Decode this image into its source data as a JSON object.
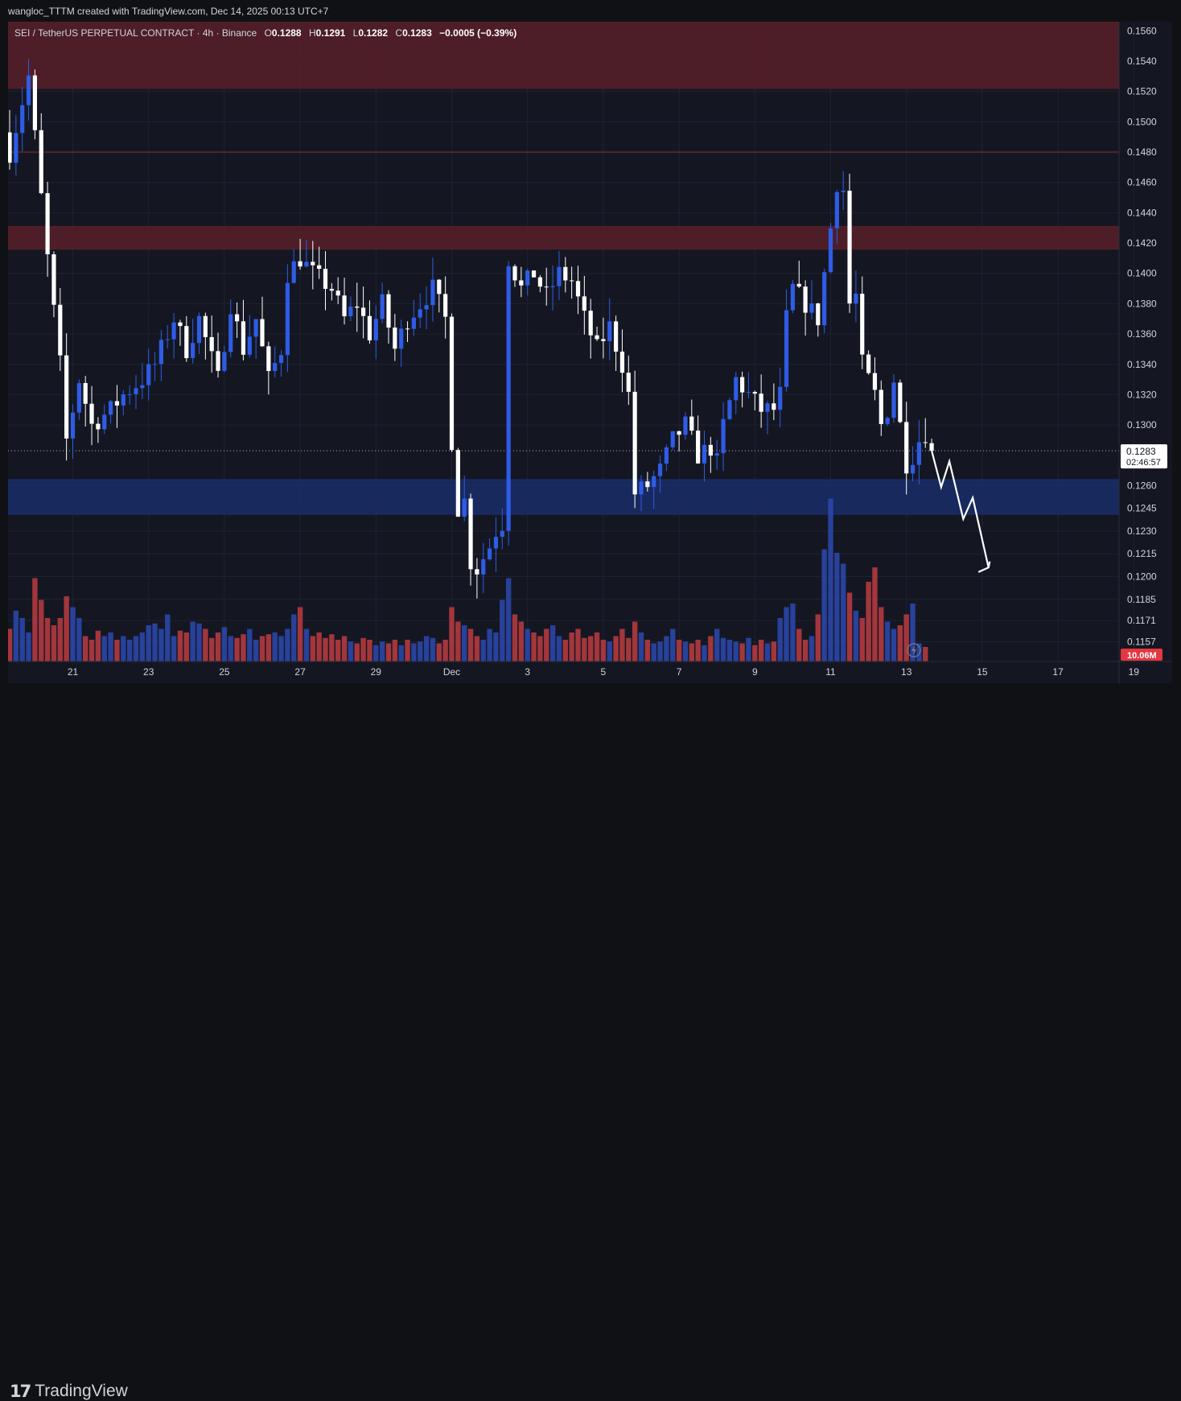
{
  "header": {
    "creator_text": "wangloc_TTTM created with TradingView.com, Dec 14, 2025 00:13 UTC+7"
  },
  "legend": {
    "symbol": "SEI / TetherUS PERPETUAL CONTRACT · 4h · Binance",
    "open_label": "O",
    "open": "0.1288",
    "high_label": "H",
    "high": "0.1291",
    "low_label": "L",
    "low": "0.1282",
    "close_label": "C",
    "close": "0.1283",
    "change": "−0.0005 (−0.39%)"
  },
  "price_badge": {
    "price": "0.1283",
    "countdown": "02:46:57"
  },
  "volume_badge": "10.06M",
  "brand": {
    "name": "TradingView",
    "logo_text": "17"
  },
  "colors": {
    "background": "#141722",
    "up_candle": "#2e5ce6",
    "down_candle": "#ffffff",
    "volume_up": "#2a46a8",
    "volume_down": "#b33a3f",
    "resistance_zone": "#5a1f2a",
    "support_zone": "#1a2d6b",
    "projection_arrow": "#ffffff"
  },
  "chart_data": {
    "type": "candlestick",
    "symbol": "SEI / TetherUS PERPETUAL CONTRACT",
    "timeframe": "4h",
    "exchange": "Binance",
    "ylim": [
      0.1144,
      0.1566
    ],
    "price_ticks": [
      "0.1560",
      "0.1540",
      "0.1520",
      "0.1500",
      "0.1480",
      "0.1460",
      "0.1440",
      "0.1420",
      "0.1400",
      "0.1380",
      "0.1360",
      "0.1340",
      "0.1320",
      "0.1300",
      "0.1260",
      "0.1245",
      "0.1230",
      "0.1215",
      "0.1200",
      "0.1185",
      "0.1171",
      "0.1157"
    ],
    "price_tick_values": [
      0.156,
      0.154,
      0.152,
      0.15,
      0.148,
      0.146,
      0.144,
      0.142,
      0.14,
      0.138,
      0.136,
      0.134,
      0.132,
      0.13,
      0.126,
      0.1245,
      0.123,
      0.1215,
      0.12,
      0.1185,
      0.1171,
      0.1157
    ],
    "x_ticks": [
      {
        "label": "21",
        "bar": 10
      },
      {
        "label": "23",
        "bar": 22
      },
      {
        "label": "25",
        "bar": 34
      },
      {
        "label": "27",
        "bar": 46
      },
      {
        "label": "29",
        "bar": 58
      },
      {
        "label": "Dec",
        "bar": 70
      },
      {
        "label": "3",
        "bar": 82
      },
      {
        "label": "5",
        "bar": 94
      },
      {
        "label": "7",
        "bar": 106
      },
      {
        "label": "9",
        "bar": 118
      },
      {
        "label": "11",
        "bar": 130
      },
      {
        "label": "13",
        "bar": 142
      },
      {
        "label": "15",
        "bar": 154
      },
      {
        "label": "17",
        "bar": 166
      },
      {
        "label": "19",
        "bar": 178
      }
    ],
    "current_price": 0.1283,
    "zones": [
      {
        "name": "resistance-top",
        "from": 0.1522,
        "to": 0.1566,
        "color": "#5a1f2a"
      },
      {
        "name": "resistance-mid",
        "from": 0.1416,
        "to": 0.1431,
        "color": "#5a1f2a"
      },
      {
        "name": "support",
        "from": 0.1241,
        "to": 0.1264,
        "color": "#1a2d6b"
      }
    ],
    "lines": [
      {
        "name": "resistance-line",
        "price": 0.148,
        "color": "#8a2f3a"
      }
    ],
    "waypoints": [
      [
        0,
        0.148
      ],
      [
        3,
        0.153
      ],
      [
        4,
        0.149
      ],
      [
        6,
        0.141
      ],
      [
        8,
        0.134
      ],
      [
        9,
        0.129
      ],
      [
        11,
        0.133
      ],
      [
        13,
        0.13
      ],
      [
        16,
        0.131
      ],
      [
        18,
        0.132
      ],
      [
        21,
        0.133
      ],
      [
        23,
        0.134
      ],
      [
        26,
        0.137
      ],
      [
        28,
        0.135
      ],
      [
        30,
        0.137
      ],
      [
        33,
        0.133
      ],
      [
        35,
        0.138
      ],
      [
        37,
        0.135
      ],
      [
        39,
        0.137
      ],
      [
        41,
        0.133
      ],
      [
        43,
        0.135
      ],
      [
        44,
        0.14
      ],
      [
        46,
        0.141
      ],
      [
        48,
        0.14
      ],
      [
        51,
        0.139
      ],
      [
        53,
        0.137
      ],
      [
        55,
        0.138
      ],
      [
        57,
        0.136
      ],
      [
        59,
        0.138
      ],
      [
        61,
        0.135
      ],
      [
        63,
        0.137
      ],
      [
        65,
        0.138
      ],
      [
        67,
        0.139
      ],
      [
        68,
        0.138
      ],
      [
        69,
        0.137
      ],
      [
        70,
        0.129
      ],
      [
        71,
        0.1245
      ],
      [
        72,
        0.125
      ],
      [
        73,
        0.121
      ],
      [
        74,
        0.1205
      ],
      [
        76,
        0.122
      ],
      [
        77,
        0.123
      ],
      [
        78,
        0.1235
      ],
      [
        79,
        0.141
      ],
      [
        81,
        0.139
      ],
      [
        83,
        0.14
      ],
      [
        85,
        0.1385
      ],
      [
        87,
        0.14
      ],
      [
        89,
        0.1395
      ],
      [
        91,
        0.137
      ],
      [
        93,
        0.135
      ],
      [
        95,
        0.1365
      ],
      [
        97,
        0.134
      ],
      [
        98,
        0.132
      ],
      [
        99,
        0.1255
      ],
      [
        101,
        0.126
      ],
      [
        103,
        0.127
      ],
      [
        105,
        0.129
      ],
      [
        107,
        0.13
      ],
      [
        109,
        0.128
      ],
      [
        111,
        0.1285
      ],
      [
        112,
        0.1275
      ],
      [
        113,
        0.13
      ],
      [
        115,
        0.133
      ],
      [
        117,
        0.132
      ],
      [
        119,
        0.131
      ],
      [
        121,
        0.131
      ],
      [
        122,
        0.132
      ],
      [
        123,
        0.137
      ],
      [
        124,
        0.139
      ],
      [
        126,
        0.138
      ],
      [
        128,
        0.137
      ],
      [
        129,
        0.14
      ],
      [
        130,
        0.143
      ],
      [
        131,
        0.146
      ],
      [
        132,
        0.1455
      ],
      [
        133,
        0.138
      ],
      [
        134,
        0.1385
      ],
      [
        135,
        0.134
      ],
      [
        136,
        0.133
      ],
      [
        137,
        0.132
      ],
      [
        138,
        0.13
      ],
      [
        139,
        0.131
      ],
      [
        140,
        0.133
      ],
      [
        141,
        0.13
      ],
      [
        142,
        0.1275
      ],
      [
        143,
        0.128
      ],
      [
        144,
        0.129
      ],
      [
        145,
        0.1295
      ],
      [
        146,
        0.1283
      ]
    ],
    "volume_max": 1.0,
    "volume": [
      0.18,
      0.28,
      0.24,
      0.16,
      0.46,
      0.34,
      0.24,
      0.2,
      0.24,
      0.36,
      0.3,
      0.24,
      0.14,
      0.12,
      0.17,
      0.14,
      0.16,
      0.12,
      0.14,
      0.12,
      0.14,
      0.16,
      0.2,
      0.21,
      0.18,
      0.26,
      0.14,
      0.17,
      0.16,
      0.22,
      0.21,
      0.18,
      0.13,
      0.16,
      0.19,
      0.14,
      0.13,
      0.15,
      0.18,
      0.12,
      0.14,
      0.15,
      0.16,
      0.14,
      0.18,
      0.26,
      0.3,
      0.18,
      0.14,
      0.16,
      0.13,
      0.15,
      0.12,
      0.14,
      0.11,
      0.1,
      0.13,
      0.12,
      0.09,
      0.11,
      0.1,
      0.12,
      0.09,
      0.12,
      0.1,
      0.11,
      0.14,
      0.13,
      0.1,
      0.12,
      0.3,
      0.22,
      0.2,
      0.18,
      0.14,
      0.12,
      0.18,
      0.16,
      0.34,
      0.46,
      0.26,
      0.22,
      0.18,
      0.16,
      0.14,
      0.18,
      0.2,
      0.14,
      0.12,
      0.16,
      0.18,
      0.13,
      0.14,
      0.16,
      0.12,
      0.11,
      0.14,
      0.18,
      0.13,
      0.22,
      0.16,
      0.12,
      0.1,
      0.11,
      0.14,
      0.18,
      0.12,
      0.11,
      0.1,
      0.12,
      0.09,
      0.14,
      0.18,
      0.13,
      0.12,
      0.11,
      0.1,
      0.13,
      0.09,
      0.12,
      0.1,
      0.11,
      0.24,
      0.3,
      0.32,
      0.18,
      0.12,
      0.14,
      0.26,
      0.62,
      0.9,
      0.6,
      0.54,
      0.38,
      0.28,
      0.24,
      0.44,
      0.52,
      0.3,
      0.22,
      0.18,
      0.2,
      0.26,
      0.32,
      0.1,
      0.08
    ],
    "volume_current": "10.06M",
    "projection": {
      "points": [
        [
          146,
          0.1283
        ],
        [
          147.5,
          0.1259
        ],
        [
          148.8,
          0.1276
        ],
        [
          151,
          0.1238
        ],
        [
          152.5,
          0.1252
        ],
        [
          155,
          0.1206
        ]
      ],
      "arrowhead": [
        [
          153.4,
          0.1203
        ],
        [
          155,
          0.1206
        ],
        [
          155.2,
          0.121
        ]
      ]
    }
  }
}
